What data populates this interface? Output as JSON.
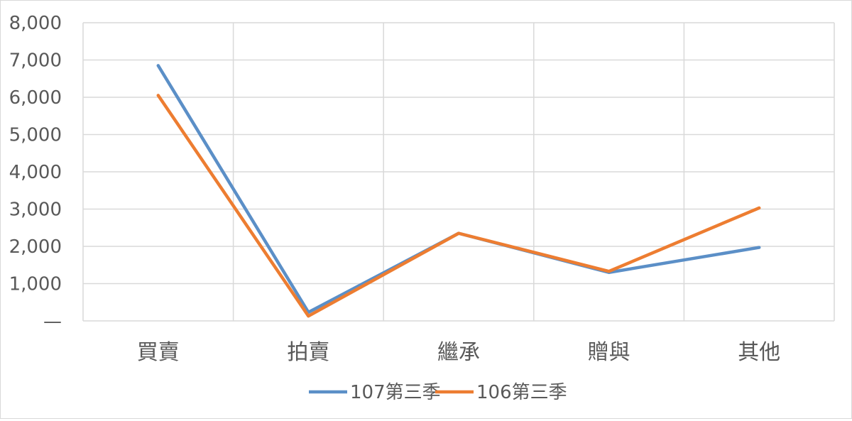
{
  "chart_data": {
    "type": "line",
    "categories": [
      "買賣",
      "拍賣",
      "繼承",
      "贈與",
      "其他"
    ],
    "series": [
      {
        "name": "107第三季",
        "values": [
          6850,
          230,
          2350,
          1300,
          1970
        ],
        "color": "#5b8fc7"
      },
      {
        "name": "106第三季",
        "values": [
          6050,
          130,
          2350,
          1330,
          3030
        ],
        "color": "#ed7d31"
      }
    ],
    "yticks": [
      "—",
      "1,000",
      "2,000",
      "3,000",
      "4,000",
      "5,000",
      "6,000",
      "7,000",
      "8,000"
    ],
    "ylim": [
      0,
      8000
    ],
    "grid": true,
    "legend_position": "bottom"
  }
}
